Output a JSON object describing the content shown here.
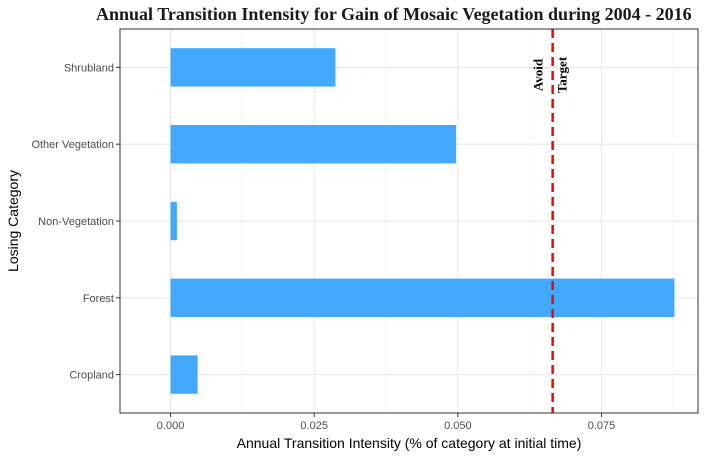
{
  "chart_data": {
    "type": "bar",
    "orientation": "horizontal",
    "title": "Annual Transition Intensity for Gain of  Mosaic Vegetation during 2004 - 2016",
    "xlabel": "Annual Transition Intensity (% of category at initial time)",
    "ylabel": "Losing Category",
    "categories": [
      "Cropland",
      "Forest",
      "Non-Vegetation",
      "Other Vegetation",
      "Shrubland"
    ],
    "values": [
      0.0047,
      0.0877,
      0.0011,
      0.0497,
      0.0287
    ],
    "xlim": [
      -0.0088,
      0.0918
    ],
    "xticks": [
      0,
      0.025,
      0.05,
      0.075
    ],
    "xtick_labels": [
      "0.000",
      "0.025",
      "0.050",
      "0.075"
    ],
    "grid": true,
    "bar_color": "#42A9FF",
    "reference_line": {
      "value": 0.0665,
      "color": "#FF0000",
      "style": "dashed",
      "labels": [
        "Avoid",
        "Target"
      ]
    }
  }
}
